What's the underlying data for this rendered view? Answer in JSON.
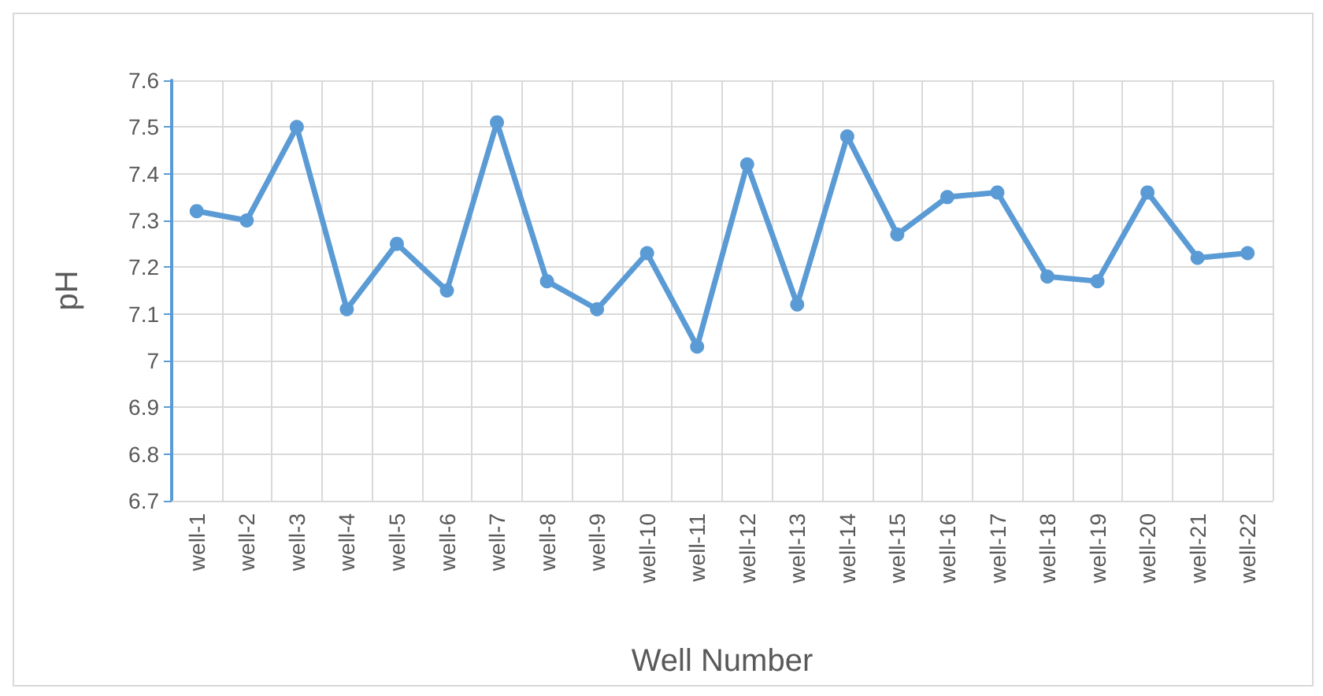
{
  "chart_data": {
    "type": "line",
    "xlabel": "Well Number",
    "ylabel": "pH",
    "categories": [
      "well-1",
      "well-2",
      "well-3",
      "well-4",
      "well-5",
      "well-6",
      "well-7",
      "well-8",
      "well-9",
      "well-10",
      "well-11",
      "well-12",
      "well-13",
      "well-14",
      "well-15",
      "well-16",
      "well-17",
      "well-18",
      "well-19",
      "well-20",
      "well-21",
      "well-22"
    ],
    "series": [
      {
        "color": "#5b9bd5",
        "values": [
          7.32,
          7.3,
          7.5,
          7.11,
          7.25,
          7.15,
          7.51,
          7.17,
          7.11,
          7.23,
          7.03,
          7.42,
          7.12,
          7.48,
          7.27,
          7.35,
          7.36,
          7.18,
          7.17,
          7.36,
          7.22,
          7.23
        ]
      }
    ],
    "ylim": [
      6.7,
      7.6
    ],
    "yticks": [
      6.7,
      6.8,
      6.9,
      7,
      7.1,
      7.2,
      7.3,
      7.4,
      7.5,
      7.6
    ],
    "grid": true,
    "marker": "circle",
    "line_style": "solid"
  }
}
